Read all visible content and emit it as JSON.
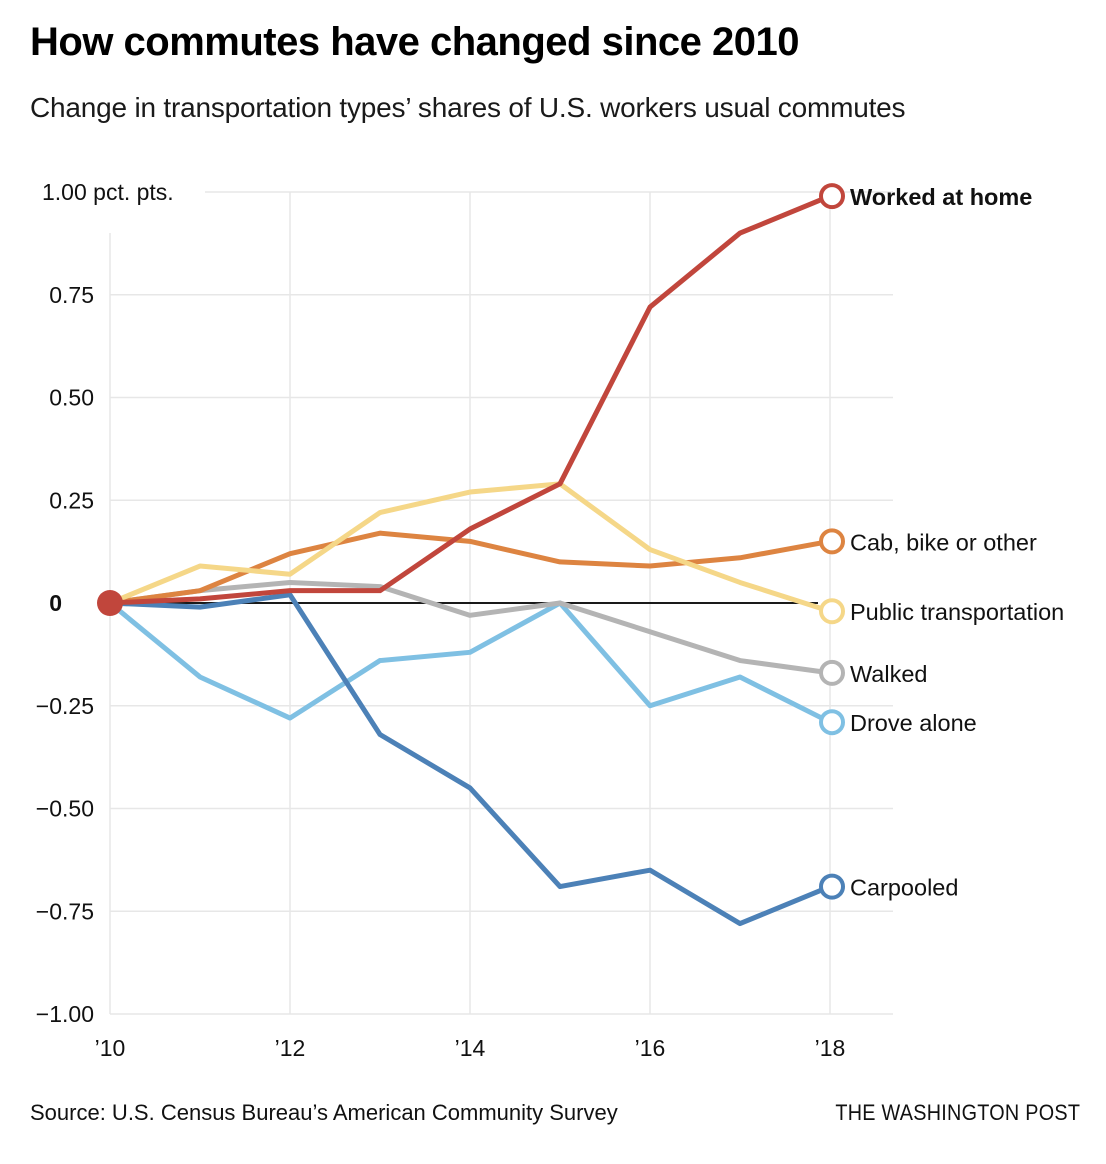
{
  "header": {
    "title": "How commutes have changed since 2010",
    "subtitle": "Change in transportation types’ shares of U.S. workers usual commutes"
  },
  "chart_data": {
    "type": "line",
    "x": [
      2010,
      2011,
      2012,
      2013,
      2014,
      2015,
      2016,
      2017,
      2018
    ],
    "x_ticks": [
      {
        "year": 2010,
        "label": "’10"
      },
      {
        "year": 2012,
        "label": "’12"
      },
      {
        "year": 2014,
        "label": "’14"
      },
      {
        "year": 2016,
        "label": "’16"
      },
      {
        "year": 2018,
        "label": "’18"
      }
    ],
    "y_ticks": [
      {
        "value": 1.0,
        "label": "1.00 pct. pts.",
        "unit": true
      },
      {
        "value": 0.75,
        "label": "0.75"
      },
      {
        "value": 0.5,
        "label": "0.50"
      },
      {
        "value": 0.25,
        "label": "0.25"
      },
      {
        "value": 0,
        "label": "0",
        "bold": true
      },
      {
        "value": -0.25,
        "label": "−0.25"
      },
      {
        "value": -0.5,
        "label": "−0.50"
      },
      {
        "value": -0.75,
        "label": "−0.75"
      },
      {
        "value": -1.0,
        "label": "−1.00"
      }
    ],
    "ylim": [
      -1.0,
      1.0
    ],
    "ylabel": "pct. pts.",
    "grid": true,
    "grid_color": "#e7e7e7",
    "zero_line_color": "#1a1a1a",
    "label_color": "#111111",
    "series": [
      {
        "name": "Drove alone",
        "color": "#7fc0e3",
        "bold_label": false,
        "values": [
          0,
          -0.18,
          -0.28,
          -0.14,
          -0.12,
          0.0,
          -0.25,
          -0.18,
          -0.29
        ]
      },
      {
        "name": "Carpooled",
        "color": "#4c81b7",
        "bold_label": false,
        "values": [
          0,
          -0.01,
          0.02,
          -0.32,
          -0.45,
          -0.69,
          -0.65,
          -0.78,
          -0.69
        ]
      },
      {
        "name": "Walked",
        "color": "#b4b4b4",
        "bold_label": false,
        "values": [
          0,
          0.03,
          0.05,
          0.04,
          -0.03,
          0.0,
          -0.07,
          -0.14,
          -0.17
        ]
      },
      {
        "name": "Cab, bike or other",
        "color": "#dd8441",
        "bold_label": false,
        "values": [
          0,
          0.03,
          0.12,
          0.17,
          0.15,
          0.1,
          0.09,
          0.11,
          0.15
        ]
      },
      {
        "name": "Public transportation",
        "color": "#f5d788",
        "bold_label": false,
        "values": [
          0,
          0.09,
          0.07,
          0.22,
          0.27,
          0.29,
          0.13,
          0.05,
          -0.02
        ]
      },
      {
        "name": "Worked at home",
        "color": "#c1463c",
        "bold_label": true,
        "values": [
          0,
          0.01,
          0.03,
          0.03,
          0.18,
          0.29,
          0.72,
          0.9,
          0.99
        ]
      }
    ],
    "start_dot": {
      "year": 2010,
      "value": 0,
      "color": "#c1463c"
    },
    "legend_position": "right-of-line-ends"
  },
  "footer": {
    "source": "Source: U.S. Census Bureau’s American Community Survey",
    "brand": "THE WASHINGTON POST"
  }
}
